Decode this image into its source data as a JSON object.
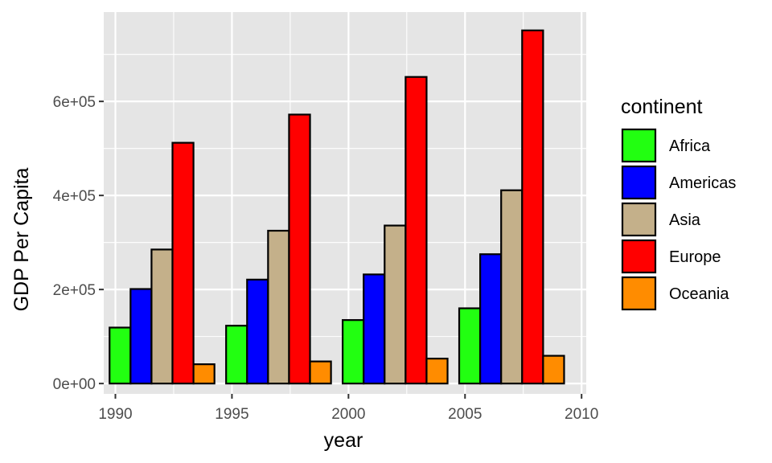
{
  "chart_data": {
    "type": "bar",
    "title": "",
    "xlabel": "year",
    "ylabel": "GDP Per Capita",
    "x": [
      1992,
      1997,
      2002,
      2007
    ],
    "xlim": [
      1989.5,
      2010.2
    ],
    "ylim": [
      -22000,
      790000
    ],
    "xticks": [
      1990,
      1995,
      2000,
      2005,
      2010
    ],
    "xtick_labels": [
      "1990",
      "1995",
      "2000",
      "2005",
      "2010"
    ],
    "yticks": [
      0,
      200000,
      400000,
      600000
    ],
    "ytick_labels": [
      "0e+00",
      "2e+05",
      "4e+05",
      "6e+05"
    ],
    "grid": true,
    "legend": {
      "title": "continent",
      "position": "right"
    },
    "series": [
      {
        "name": "Africa",
        "color": "#22ff11",
        "values": [
          119000,
          123000,
          135000,
          160000
        ]
      },
      {
        "name": "Americas",
        "color": "#0000ff",
        "values": [
          201000,
          221000,
          232000,
          275000
        ]
      },
      {
        "name": "Asia",
        "color": "#c4b08a",
        "values": [
          285000,
          325000,
          336000,
          411000
        ]
      },
      {
        "name": "Europe",
        "color": "#ff0000",
        "values": [
          512000,
          572000,
          652000,
          751000
        ]
      },
      {
        "name": "Oceania",
        "color": "#ff8c00",
        "values": [
          41000,
          47000,
          53000,
          59000
        ]
      }
    ],
    "panel_background": "#e5e5e5",
    "grid_color": "#ffffff",
    "bar_outline": "#000000"
  }
}
